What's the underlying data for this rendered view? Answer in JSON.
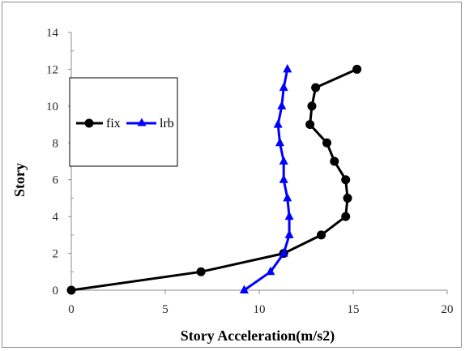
{
  "chart_data": {
    "type": "line",
    "title": "",
    "xlabel": "Story Acceleration(m/s2)",
    "ylabel": "Story",
    "xlim": [
      0,
      20
    ],
    "ylim": [
      0,
      14
    ],
    "xticks": [
      0,
      5,
      10,
      15,
      20
    ],
    "yticks": [
      0,
      2,
      4,
      6,
      8,
      10,
      12,
      14
    ],
    "xtick_labels": [
      "0",
      "5",
      "10",
      "15",
      "20"
    ],
    "ytick_labels": [
      "0",
      "2",
      "4",
      "6",
      "8",
      "10",
      "12",
      "14"
    ],
    "grid": false,
    "legend_position": "left",
    "series": [
      {
        "name": "fix",
        "color": "#000000",
        "marker": "circle",
        "x": [
          0,
          6.9,
          11.3,
          13.3,
          14.6,
          14.7,
          14.6,
          14.0,
          13.6,
          12.7,
          12.8,
          13.0,
          15.2
        ],
        "y": [
          0,
          1,
          2,
          3,
          4,
          5,
          6,
          7,
          8,
          9,
          10,
          11,
          12
        ]
      },
      {
        "name": "lrb",
        "color": "#0000ff",
        "marker": "triangle",
        "x": [
          9.2,
          10.6,
          11.3,
          11.6,
          11.6,
          11.5,
          11.3,
          11.3,
          11.1,
          11.0,
          11.2,
          11.3,
          11.5
        ],
        "y": [
          0,
          1,
          2,
          3,
          4,
          5,
          6,
          7,
          8,
          9,
          10,
          11,
          12
        ]
      }
    ]
  }
}
